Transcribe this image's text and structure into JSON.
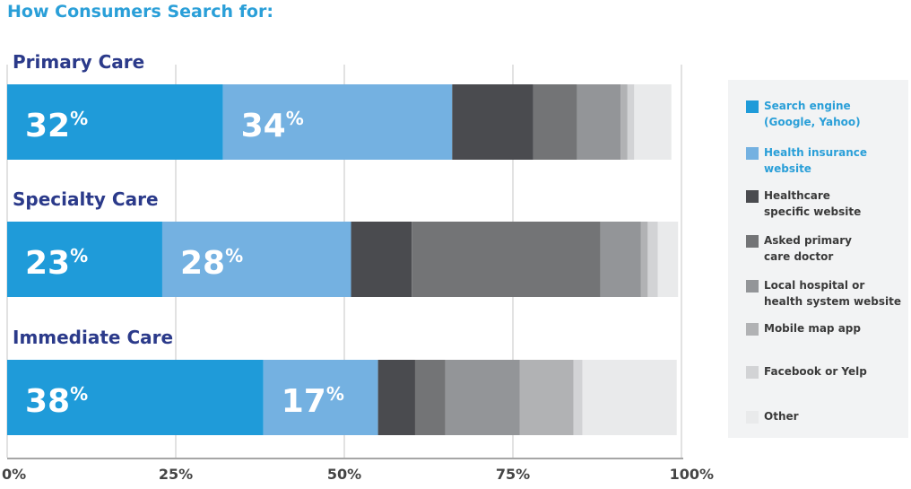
{
  "chart_data": {
    "type": "bar",
    "orientation": "horizontal",
    "stacked": true,
    "title": "How Consumers Search for:",
    "categories": [
      "Primary Care",
      "Specialty Care",
      "Immediate Care"
    ],
    "series": [
      {
        "name": "Search engine (Google, Yahoo)",
        "label_lines": [
          "Search engine",
          "(Google, Yahoo)"
        ],
        "color": "#1f9bd9",
        "values": [
          32,
          23,
          38
        ]
      },
      {
        "name": "Health insurance website",
        "label_lines": [
          "Health insurance",
          "website"
        ],
        "color": "#74b1e1",
        "values": [
          34,
          28,
          17
        ]
      },
      {
        "name": "Healthcare specific website",
        "label_lines": [
          "Healthcare",
          "specific website"
        ],
        "color": "#4a4b4f",
        "values": [
          12,
          9,
          5.5
        ]
      },
      {
        "name": "Asked primary care doctor",
        "label_lines": [
          "Asked primary",
          "care doctor"
        ],
        "color": "#737476",
        "values": [
          6.5,
          28,
          4.5
        ]
      },
      {
        "name": "Local hospital or health system website",
        "label_lines": [
          "Local hospital or",
          "health system website"
        ],
        "color": "#939598",
        "values": [
          6.5,
          6,
          11
        ]
      },
      {
        "name": "Mobile map app",
        "label_lines": [
          "Mobile map app"
        ],
        "color": "#b1b2b4",
        "values": [
          1,
          1,
          8
        ]
      },
      {
        "name": "Facebook or Yelp",
        "label_lines": [
          "Facebook or Yelp"
        ],
        "color": "#d2d3d5",
        "values": [
          1,
          1.5,
          1.3
        ]
      },
      {
        "name": "Other",
        "label_lines": [
          "Other"
        ],
        "color": "#e9eaeb",
        "values": [
          5.5,
          3,
          14
        ]
      }
    ],
    "data_labels": [
      [
        {
          "series": 0,
          "text": "32"
        },
        {
          "series": 1,
          "text": "34"
        }
      ],
      [
        {
          "series": 0,
          "text": "23"
        },
        {
          "series": 1,
          "text": "28"
        }
      ],
      [
        {
          "series": 0,
          "text": "38"
        },
        {
          "series": 1,
          "text": "17"
        }
      ]
    ],
    "xaxis": {
      "min": 0,
      "max": 100,
      "ticks": [
        0,
        25,
        50,
        75,
        100
      ],
      "tick_labels": [
        "0%",
        "25%",
        "50%",
        "75%",
        "100%"
      ]
    },
    "grid": true,
    "legend_position": "right",
    "label_color": "#2b3a8a",
    "legend_highlight_color": "#2a9fd8"
  }
}
